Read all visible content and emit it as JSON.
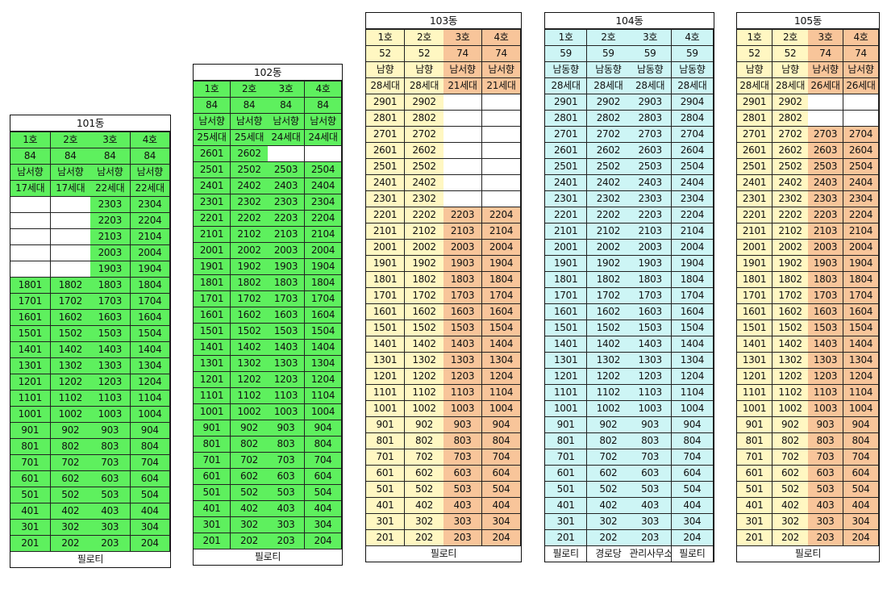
{
  "buildings": [
    {
      "name": "101동",
      "units": [
        "1호",
        "2호",
        "3호",
        "4호"
      ],
      "area": [
        "84",
        "84",
        "84",
        "84"
      ],
      "direction": [
        "남서향",
        "남서향",
        "남서향",
        "남서향"
      ],
      "households": [
        "17세대",
        "17세대",
        "22세대",
        "22세대"
      ],
      "unit_color": [
        "g",
        "g",
        "g",
        "g"
      ],
      "top_floor": [
        18,
        18,
        23,
        23
      ],
      "grid_top_floor": 23,
      "footer": [
        "필로티"
      ],
      "colors": {
        "header": "#5ef05e",
        "cells": "#5ef05e"
      }
    },
    {
      "name": "102동",
      "units": [
        "1호",
        "2호",
        "3호",
        "4호"
      ],
      "area": [
        "84",
        "84",
        "84",
        "84"
      ],
      "direction": [
        "남서향",
        "남서향",
        "남서향",
        "남서향"
      ],
      "households": [
        "25세대",
        "25세대",
        "24세대",
        "24세대"
      ],
      "unit_color": [
        "g",
        "g",
        "g",
        "g"
      ],
      "top_floor": [
        26,
        26,
        25,
        25
      ],
      "grid_top_floor": 26,
      "footer": [
        "필로티"
      ],
      "colors": {
        "header": "#5ef05e",
        "cells": "#5ef05e"
      }
    },
    {
      "name": "103동",
      "units": [
        "1호",
        "2호",
        "3호",
        "4호"
      ],
      "area": [
        "52",
        "52",
        "74",
        "74"
      ],
      "direction": [
        "남향",
        "남향",
        "남서향",
        "남서향"
      ],
      "households": [
        "28세대",
        "28세대",
        "21세대",
        "21세대"
      ],
      "unit_color": [
        "y",
        "y",
        "o",
        "o"
      ],
      "top_floor": [
        29,
        29,
        22,
        22
      ],
      "grid_top_floor": 29,
      "footer": [
        "필로티"
      ],
      "colors": {
        "col12": "#fff7c2",
        "col34": "#f8c59a"
      }
    },
    {
      "name": "104동",
      "units": [
        "1호",
        "2호",
        "3호",
        "4호"
      ],
      "area": [
        "59",
        "59",
        "59",
        "59"
      ],
      "direction": [
        "남동향",
        "남동향",
        "남동향",
        "남동향"
      ],
      "households": [
        "28세대",
        "28세대",
        "28세대",
        "28세대"
      ],
      "unit_color": [
        "b",
        "b",
        "b",
        "b"
      ],
      "top_floor": [
        29,
        29,
        29,
        29
      ],
      "grid_top_floor": 29,
      "footer": [
        "필로티",
        "경로당",
        "관리사무소",
        "필로티"
      ],
      "colors": {
        "cells": "#cdf5f5"
      }
    },
    {
      "name": "105동",
      "units": [
        "1호",
        "2호",
        "3호",
        "4호"
      ],
      "area": [
        "52",
        "52",
        "74",
        "74"
      ],
      "direction": [
        "남향",
        "남향",
        "남서향",
        "남서향"
      ],
      "households": [
        "28세대",
        "28세대",
        "26세대",
        "26세대"
      ],
      "unit_color": [
        "y",
        "y",
        "o",
        "o"
      ],
      "top_floor": [
        29,
        29,
        27,
        27
      ],
      "grid_top_floor": 29,
      "footer": [
        "필로티"
      ],
      "colors": {
        "col12": "#fff7c2",
        "col34": "#f8c59a"
      }
    }
  ]
}
